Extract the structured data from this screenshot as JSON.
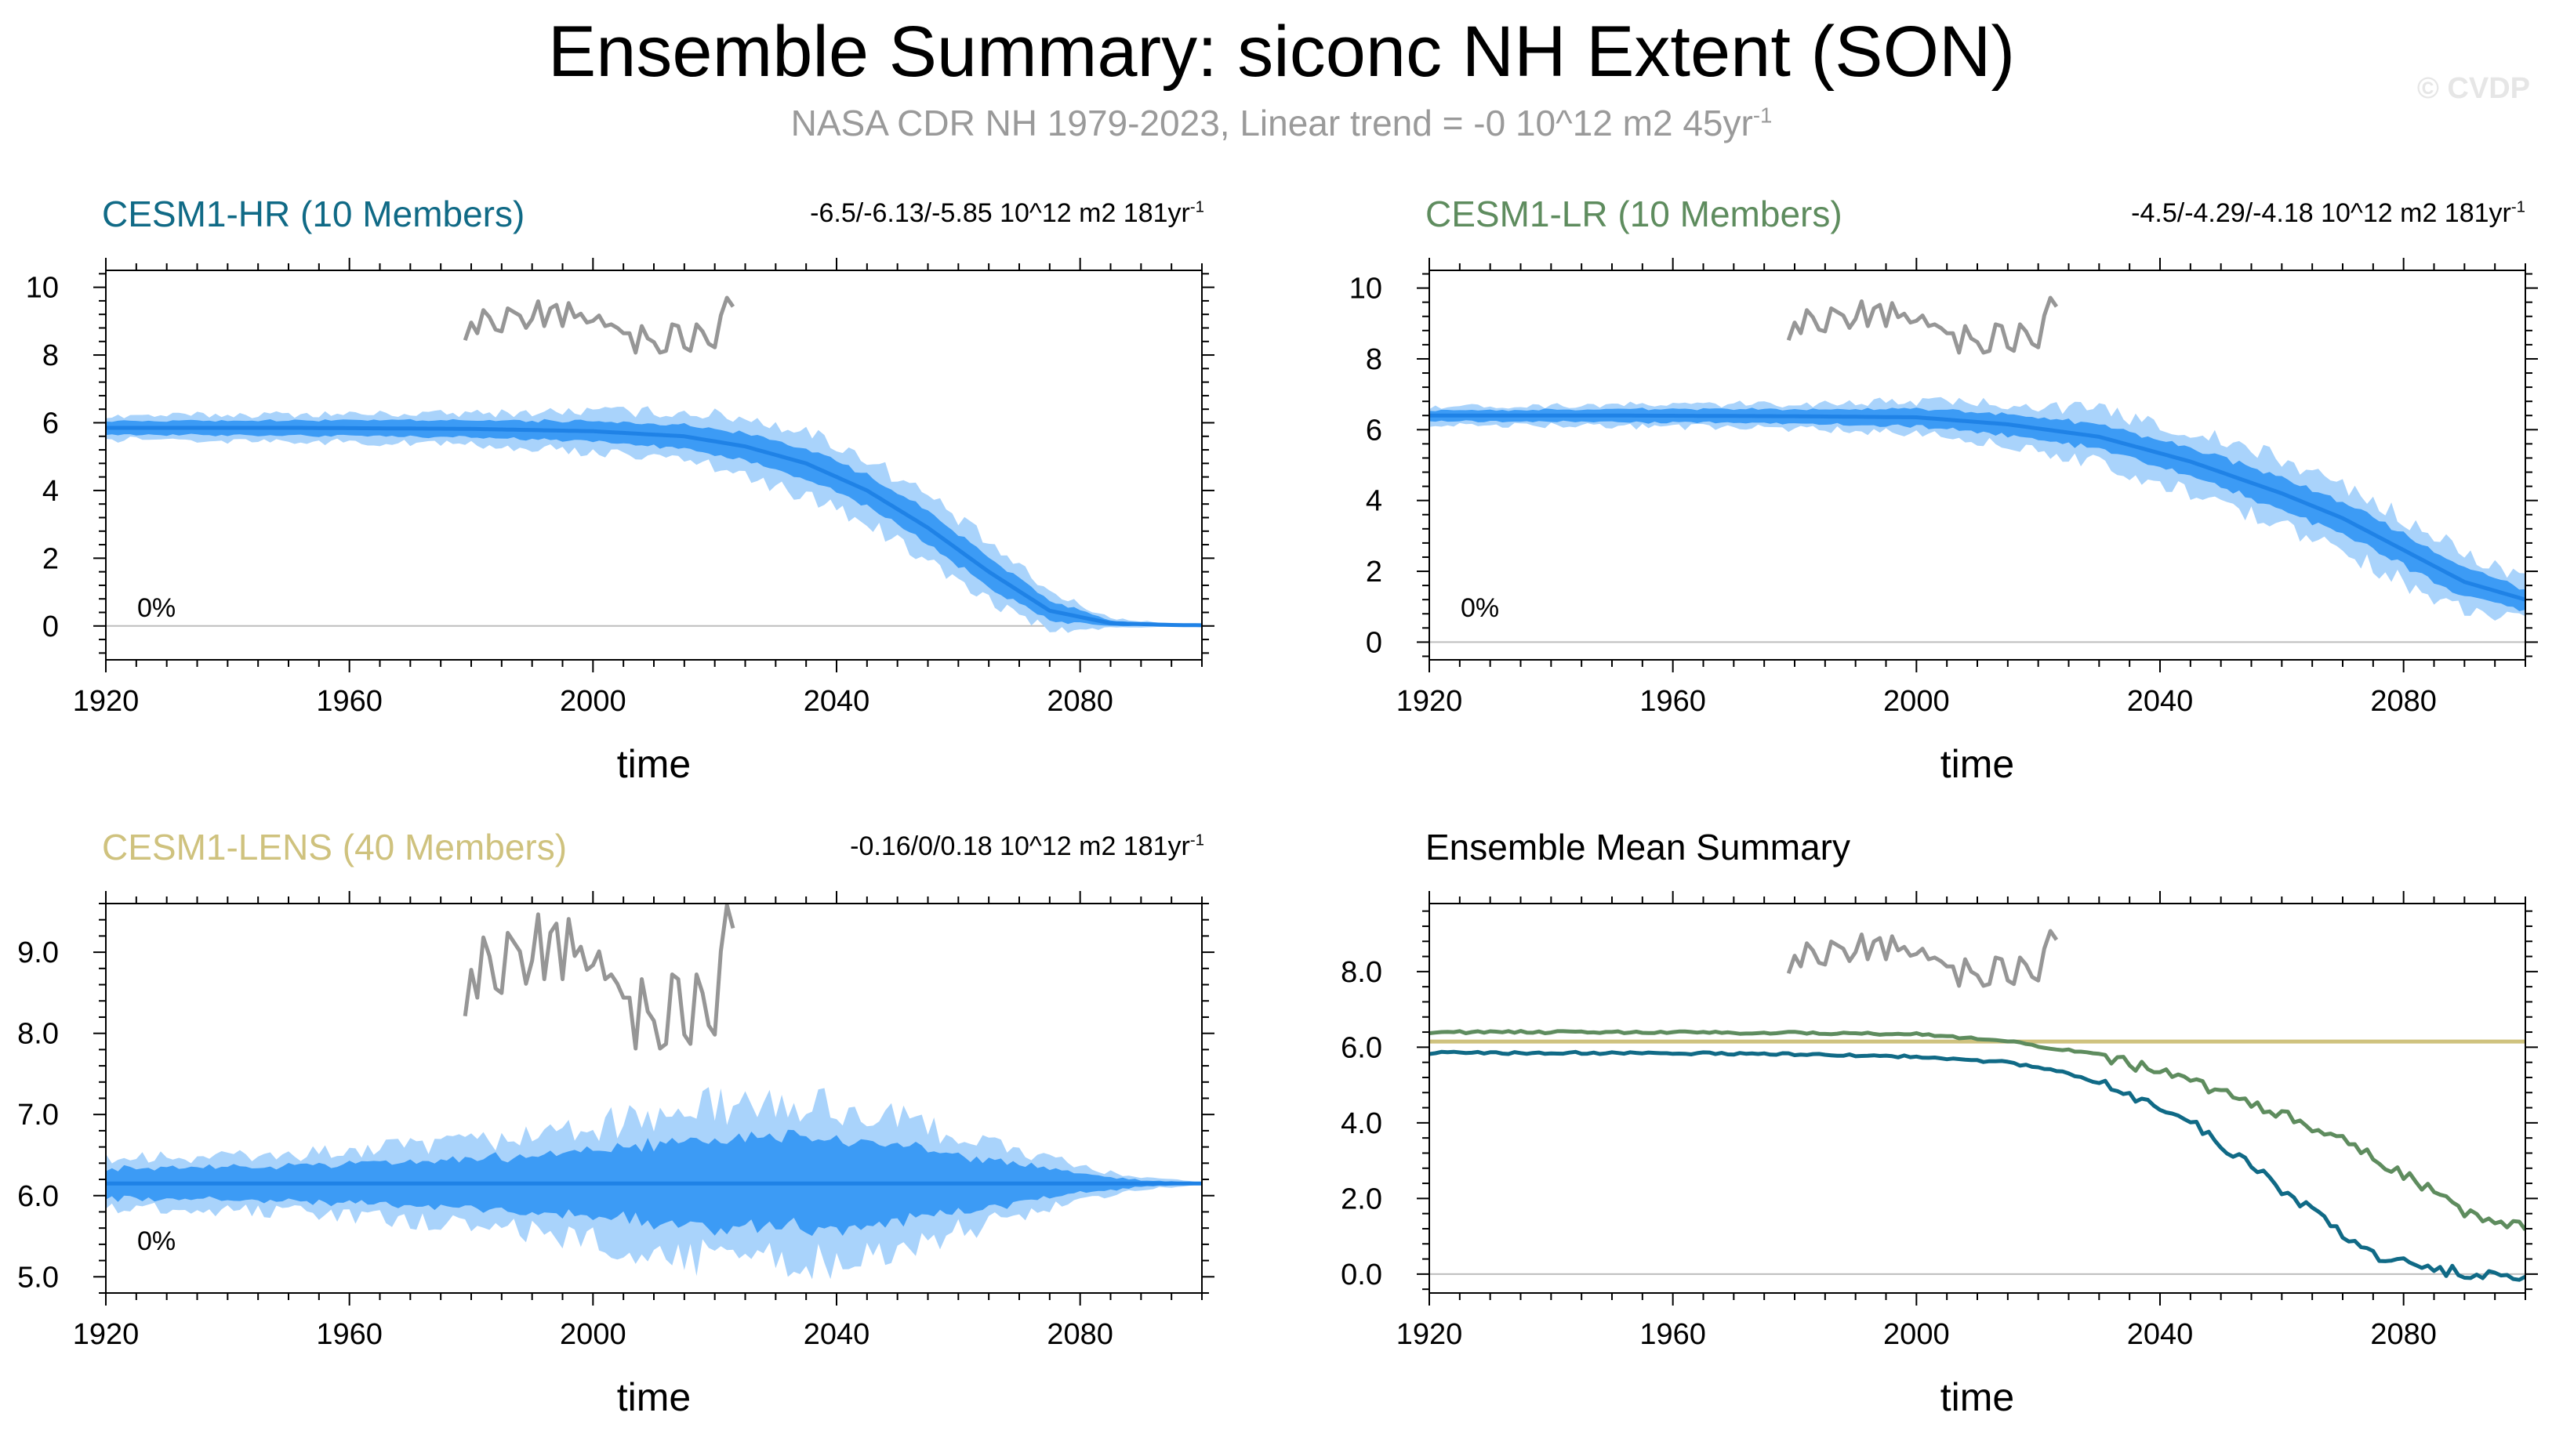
{
  "title": "Ensemble Summary: siconc NH Extent (SON)",
  "subtitle": {
    "text": "NASA CDR NH 1979-2023, Linear trend = -0 10^12 m2 45yr",
    "superscript": "-1"
  },
  "credit": "© CVDP",
  "colors": {
    "title": "#000000",
    "subtitle": "#9a9a9a",
    "hr": "#106a86",
    "lr": "#5e8c5e",
    "lens": "#cfc27e",
    "band_outer": "#a9d3fb",
    "band_inner": "#3c9bf5",
    "mean_line": "#1f82e6",
    "obs": "#969696",
    "frame": "#000000",
    "zero_line": "#bdbdbd"
  },
  "chart_data": [
    {
      "id": "hr",
      "type": "area",
      "label": "CESM1-HR (10 Members)",
      "label_color": "#106a86",
      "trend_text": "-6.5/-6.13/-5.85 10^12 m2 181yr",
      "trend_superscript": "-1",
      "percent_text": "0%",
      "xlabel": "time",
      "ylabel": "",
      "xlim": [
        1920,
        2100
      ],
      "ylim": [
        -1,
        10.5
      ],
      "xticks": [
        "1920",
        "1960",
        "2000",
        "2040",
        "2080"
      ],
      "xtick_values": [
        1920,
        1960,
        2000,
        2040,
        2080
      ],
      "yticks": [
        "0",
        "2",
        "4",
        "6",
        "8",
        "10"
      ],
      "ytick_values": [
        0,
        2,
        4,
        6,
        8,
        10
      ],
      "zero_line": 0,
      "ensemble": {
        "years": [
          1920,
          1950,
          1980,
          2000,
          2015,
          2025,
          2035,
          2045,
          2055,
          2065,
          2075,
          2085,
          2095,
          2100
        ],
        "mean": [
          5.85,
          5.85,
          5.82,
          5.75,
          5.6,
          5.3,
          4.8,
          4.0,
          2.9,
          1.6,
          0.45,
          0.08,
          0.03,
          0.02
        ],
        "inner_halfwidth": [
          0.2,
          0.22,
          0.25,
          0.3,
          0.35,
          0.4,
          0.45,
          0.45,
          0.5,
          0.45,
          0.3,
          0.08,
          0.02,
          0.02
        ],
        "outer_halfwidth": [
          0.35,
          0.4,
          0.45,
          0.6,
          0.7,
          0.85,
          0.95,
          0.95,
          0.95,
          0.85,
          0.55,
          0.15,
          0.04,
          0.03
        ],
        "noise": [
          0.2,
          0.55
        ]
      },
      "observations": {
        "years": [
          1979,
          1980,
          1981,
          1982,
          1983,
          1984,
          1985,
          1986,
          1987,
          1988,
          1989,
          1990,
          1991,
          1992,
          1993,
          1994,
          1995,
          1996,
          1997,
          1998,
          1999,
          2000,
          2001,
          2002,
          2003,
          2004,
          2005,
          2006,
          2007,
          2008,
          2009,
          2010,
          2011,
          2012,
          2013,
          2014,
          2015,
          2016,
          2017,
          2018,
          2019,
          2020,
          2021,
          2022,
          2023
        ],
        "values": [
          8.15,
          8.65,
          8.35,
          9.0,
          8.8,
          8.45,
          8.4,
          9.05,
          8.95,
          8.85,
          8.5,
          8.75,
          9.25,
          8.55,
          9.05,
          9.15,
          8.55,
          9.2,
          8.8,
          8.9,
          8.65,
          8.7,
          8.85,
          8.55,
          8.6,
          8.5,
          8.35,
          8.35,
          7.8,
          8.55,
          8.2,
          8.1,
          7.8,
          7.85,
          8.6,
          8.55,
          7.95,
          7.85,
          8.6,
          8.4,
          8.05,
          7.95,
          8.85,
          9.35,
          9.1
        ]
      }
    },
    {
      "id": "lr",
      "type": "area",
      "label": "CESM1-LR (10 Members)",
      "label_color": "#5e8c5e",
      "trend_text": "-4.5/-4.29/-4.18 10^12 m2 181yr",
      "trend_superscript": "-1",
      "percent_text": "0%",
      "xlabel": "time",
      "ylabel": "",
      "xlim": [
        1920,
        2100
      ],
      "ylim": [
        -0.5,
        10.5
      ],
      "xticks": [
        "1920",
        "1960",
        "2000",
        "2040",
        "2080"
      ],
      "xtick_values": [
        1920,
        1960,
        2000,
        2040,
        2080
      ],
      "yticks": [
        "0",
        "2",
        "4",
        "6",
        "8",
        "10"
      ],
      "ytick_values": [
        0,
        2,
        4,
        6,
        8,
        10
      ],
      "zero_line": 0,
      "ensemble": {
        "years": [
          1920,
          1950,
          1980,
          2000,
          2015,
          2030,
          2045,
          2060,
          2070,
          2080,
          2090,
          2100
        ],
        "mean": [
          6.4,
          6.4,
          6.38,
          6.35,
          6.15,
          5.8,
          5.1,
          4.2,
          3.5,
          2.6,
          1.7,
          1.2
        ],
        "inner_halfwidth": [
          0.15,
          0.18,
          0.2,
          0.25,
          0.3,
          0.35,
          0.4,
          0.45,
          0.45,
          0.45,
          0.4,
          0.3
        ],
        "outer_halfwidth": [
          0.25,
          0.3,
          0.35,
          0.45,
          0.6,
          0.75,
          0.85,
          0.95,
          0.95,
          0.9,
          0.8,
          0.6
        ],
        "noise": [
          0.25,
          0.6
        ]
      },
      "observations": {
        "years": [
          1979,
          1980,
          1981,
          1982,
          1983,
          1984,
          1985,
          1986,
          1987,
          1988,
          1989,
          1990,
          1991,
          1992,
          1993,
          1994,
          1995,
          1996,
          1997,
          1998,
          1999,
          2000,
          2001,
          2002,
          2003,
          2004,
          2005,
          2006,
          2007,
          2008,
          2009,
          2010,
          2011,
          2012,
          2013,
          2014,
          2015,
          2016,
          2017,
          2018,
          2019,
          2020,
          2021,
          2022,
          2023
        ],
        "values": [
          8.15,
          8.65,
          8.35,
          9.0,
          8.8,
          8.45,
          8.4,
          9.05,
          8.95,
          8.85,
          8.5,
          8.75,
          9.25,
          8.55,
          9.05,
          9.15,
          8.55,
          9.2,
          8.8,
          8.9,
          8.65,
          8.7,
          8.85,
          8.55,
          8.6,
          8.5,
          8.35,
          8.35,
          7.8,
          8.55,
          8.2,
          8.1,
          7.8,
          7.85,
          8.6,
          8.55,
          7.95,
          7.85,
          8.6,
          8.4,
          8.05,
          7.95,
          8.85,
          9.35,
          9.1
        ]
      }
    },
    {
      "id": "lens",
      "type": "area",
      "label": "CESM1-LENS (40 Members)",
      "label_color": "#cfc27e",
      "trend_text": "-0.16/0/0.18 10^12 m2 181yr",
      "trend_superscript": "-1",
      "percent_text": "0%",
      "xlabel": "time",
      "ylabel": "",
      "xlim": [
        1920,
        2100
      ],
      "ylim": [
        4.8,
        9.6
      ],
      "xticks": [
        "1920",
        "1960",
        "2000",
        "2040",
        "2080"
      ],
      "xtick_values": [
        1920,
        1960,
        2000,
        2040,
        2080
      ],
      "yticks": [
        "5.0",
        "6.0",
        "7.0",
        "8.0",
        "9.0"
      ],
      "ytick_values": [
        5,
        6,
        7,
        8,
        9
      ],
      "zero_line": null,
      "ensemble": {
        "years": [
          1920,
          1950,
          1980,
          2000,
          2020,
          2040,
          2060,
          2080,
          2090,
          2100
        ],
        "mean": [
          6.15,
          6.15,
          6.15,
          6.15,
          6.15,
          6.15,
          6.15,
          6.15,
          6.15,
          6.15
        ],
        "inner_halfwidth": [
          0.18,
          0.22,
          0.3,
          0.4,
          0.55,
          0.55,
          0.35,
          0.12,
          0.04,
          0.01
        ],
        "outer_halfwidth": [
          0.3,
          0.35,
          0.5,
          0.7,
          0.95,
          0.95,
          0.6,
          0.2,
          0.07,
          0.02
        ],
        "noise": [
          0.25,
          0.55
        ]
      },
      "observations": {
        "years": [
          1979,
          1980,
          1981,
          1982,
          1983,
          1984,
          1985,
          1986,
          1987,
          1988,
          1989,
          1990,
          1991,
          1992,
          1993,
          1994,
          1995,
          1996,
          1997,
          1998,
          1999,
          2000,
          2001,
          2002,
          2003,
          2004,
          2005,
          2006,
          2007,
          2008,
          2009,
          2010,
          2011,
          2012,
          2013,
          2014,
          2015,
          2016,
          2017,
          2018,
          2019,
          2020,
          2021,
          2022,
          2023
        ],
        "values": [
          8.15,
          8.65,
          8.35,
          9.0,
          8.8,
          8.45,
          8.4,
          9.05,
          8.95,
          8.85,
          8.5,
          8.75,
          9.25,
          8.55,
          9.05,
          9.15,
          8.55,
          9.2,
          8.8,
          8.9,
          8.65,
          8.7,
          8.85,
          8.55,
          8.6,
          8.5,
          8.35,
          8.35,
          7.8,
          8.55,
          8.2,
          8.1,
          7.8,
          7.85,
          8.6,
          8.55,
          7.95,
          7.85,
          8.6,
          8.4,
          8.05,
          7.95,
          8.85,
          9.35,
          9.1
        ]
      }
    },
    {
      "id": "summary",
      "type": "line",
      "label": "Ensemble Mean Summary",
      "label_color": "#000000",
      "xlabel": "time",
      "ylabel": "",
      "xlim": [
        1920,
        2100
      ],
      "ylim": [
        -0.5,
        9.8
      ],
      "xticks": [
        "1920",
        "1960",
        "2000",
        "2040",
        "2080"
      ],
      "xtick_values": [
        1920,
        1960,
        2000,
        2040,
        2080
      ],
      "yticks": [
        "0.0",
        "2.0",
        "4.0",
        "6.0",
        "8.0"
      ],
      "ytick_values": [
        0,
        2,
        4,
        6,
        8
      ],
      "zero_line": 0,
      "series": [
        {
          "name": "CESM1-LENS",
          "color": "#cfc27e",
          "years": [
            1920,
            2100
          ],
          "values": [
            6.15,
            6.15
          ]
        },
        {
          "name": "CESM1-LR",
          "color": "#5e8c5e",
          "years": [
            1920,
            1950,
            1980,
            2000,
            2015,
            2030,
            2045,
            2060,
            2070,
            2080,
            2090,
            2100
          ],
          "values": [
            6.4,
            6.4,
            6.38,
            6.35,
            6.15,
            5.8,
            5.1,
            4.2,
            3.5,
            2.6,
            1.7,
            1.2
          ]
        },
        {
          "name": "CESM1-HR",
          "color": "#106a86",
          "years": [
            1920,
            1950,
            1980,
            2000,
            2015,
            2025,
            2035,
            2045,
            2055,
            2065,
            2075,
            2085,
            2095,
            2100
          ],
          "values": [
            5.85,
            5.85,
            5.82,
            5.75,
            5.6,
            5.3,
            4.8,
            4.0,
            2.9,
            1.6,
            0.45,
            0.08,
            0.03,
            0.02
          ]
        }
      ],
      "observations": {
        "years": [
          1979,
          1980,
          1981,
          1982,
          1983,
          1984,
          1985,
          1986,
          1987,
          1988,
          1989,
          1990,
          1991,
          1992,
          1993,
          1994,
          1995,
          1996,
          1997,
          1998,
          1999,
          2000,
          2001,
          2002,
          2003,
          2004,
          2005,
          2006,
          2007,
          2008,
          2009,
          2010,
          2011,
          2012,
          2013,
          2014,
          2015,
          2016,
          2017,
          2018,
          2019,
          2020,
          2021,
          2022,
          2023
        ],
        "values": [
          8.15,
          8.65,
          8.35,
          9.0,
          8.8,
          8.45,
          8.4,
          9.05,
          8.95,
          8.85,
          8.5,
          8.75,
          9.25,
          8.55,
          9.05,
          9.15,
          8.55,
          9.2,
          8.8,
          8.9,
          8.65,
          8.7,
          8.85,
          8.55,
          8.6,
          8.5,
          8.35,
          8.35,
          7.8,
          8.55,
          8.2,
          8.1,
          7.8,
          7.85,
          8.6,
          8.55,
          7.95,
          7.85,
          8.6,
          8.4,
          8.05,
          7.95,
          8.85,
          9.35,
          9.1
        ]
      }
    }
  ]
}
